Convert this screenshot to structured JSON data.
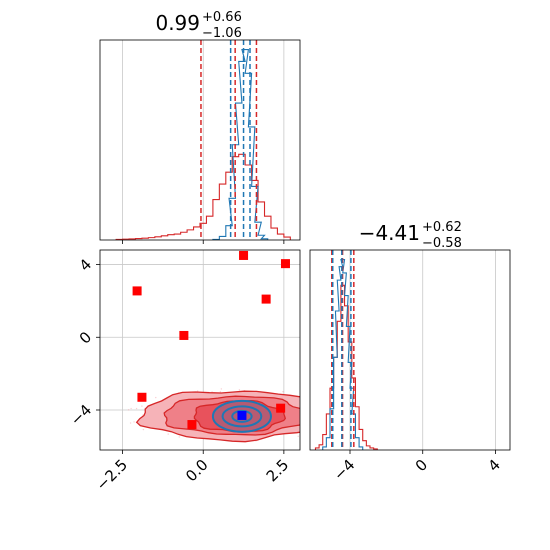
{
  "colors": {
    "red": "#d62728",
    "red_fill": "#f08080",
    "red_point": "#ff0000",
    "blue": "#1f77b4",
    "blue_point": "#0000ff",
    "grid": "#c8c8c8"
  },
  "chart_data": [
    {
      "type": "line",
      "panel": "top-left",
      "title": {
        "main": "0.99",
        "plus": "+0.66",
        "minus": "−1.06"
      },
      "xlim": [
        -3.2,
        3.0
      ],
      "x_ticks": [
        -2.5,
        0.0,
        2.5
      ],
      "grid": true,
      "series": [
        {
          "color": "#d62728",
          "x": [
            -2.6,
            -2.4,
            -2.2,
            -2.0,
            -1.8,
            -1.6,
            -1.4,
            -1.2,
            -1.0,
            -0.8,
            -0.6,
            -0.4,
            -0.2,
            0.0,
            0.2,
            0.4,
            0.6,
            0.8,
            1.0,
            1.2,
            1.4,
            1.6,
            1.8,
            2.0,
            2.2,
            2.4,
            2.6
          ],
          "y": [
            0.5,
            0.7,
            0.9,
            1.2,
            1.5,
            2.0,
            2.7,
            3.5,
            4.5,
            5.0,
            6.5,
            8.5,
            11.0,
            14.0,
            20.0,
            34.0,
            47.0,
            57.0,
            70.0,
            72.0,
            63.0,
            50.0,
            32.0,
            20.0,
            10.0,
            5.0,
            2.5
          ]
        },
        {
          "color": "#1f77b4",
          "x": [
            0.4,
            0.6,
            0.8,
            0.9,
            1.0,
            1.1,
            1.2,
            1.3,
            1.4,
            1.5,
            1.6,
            1.7,
            1.8,
            1.9
          ],
          "y": [
            0.5,
            3.0,
            12.0,
            35.0,
            80.0,
            115.0,
            150.0,
            160.0,
            140.0,
            95.0,
            45.0,
            15.0,
            4.0,
            1.0
          ]
        }
      ],
      "quantile_lines": [
        {
          "color": "#d62728",
          "x": [
            -0.07,
            0.99,
            1.65
          ]
        },
        {
          "color": "#1f77b4",
          "x": [
            0.85,
            1.25,
            1.45
          ]
        }
      ]
    },
    {
      "type": "scatter",
      "panel": "bottom-left",
      "xlim": [
        -3.2,
        3.0
      ],
      "ylim": [
        -6.2,
        4.8
      ],
      "x_ticks": [
        -2.5,
        0.0,
        2.5
      ],
      "y_ticks": [
        -4,
        0,
        4
      ],
      "grid": true,
      "red_points": [
        {
          "x": -2.05,
          "y": 2.55
        },
        {
          "x": 1.25,
          "y": 4.5
        },
        {
          "x": 2.55,
          "y": 4.05
        },
        {
          "x": 1.95,
          "y": 2.1
        },
        {
          "x": -0.6,
          "y": 0.1
        },
        {
          "x": -1.9,
          "y": -3.3
        },
        {
          "x": -0.35,
          "y": -4.8
        },
        {
          "x": 2.4,
          "y": -3.9
        }
      ],
      "blue_points": [
        {
          "x": 1.2,
          "y": -4.3
        }
      ],
      "red_contours": [
        {
          "cx": 0.9,
          "cy": -4.3,
          "rx": 2.85,
          "ry": 1.35
        },
        {
          "cx": 1.0,
          "cy": -4.3,
          "rx": 2.25,
          "ry": 1.05
        },
        {
          "cx": 1.1,
          "cy": -4.35,
          "rx": 1.4,
          "ry": 0.85
        }
      ],
      "blue_contours": [
        {
          "cx": 1.2,
          "cy": -4.35,
          "rx": 0.9,
          "ry": 0.85
        },
        {
          "cx": 1.2,
          "cy": -4.35,
          "rx": 0.6,
          "ry": 0.55
        },
        {
          "cx": 1.2,
          "cy": -4.35,
          "rx": 0.3,
          "ry": 0.3
        }
      ]
    },
    {
      "type": "line",
      "panel": "bottom-right",
      "title": {
        "main": "−4.41",
        "plus": "+0.62",
        "minus": "−0.58"
      },
      "xlim": [
        -6.2,
        4.8
      ],
      "x_ticks": [
        -4,
        0,
        4
      ],
      "grid": true,
      "series": [
        {
          "color": "#d62728",
          "x": [
            -5.8,
            -5.6,
            -5.4,
            -5.2,
            -5.0,
            -4.8,
            -4.6,
            -4.4,
            -4.2,
            -4.0,
            -3.8,
            -3.6,
            -3.4,
            -3.2,
            -3.0,
            -2.8,
            -2.6
          ],
          "y": [
            2.0,
            5.0,
            15.0,
            35.0,
            60.0,
            90.0,
            125.0,
            160.0,
            140.0,
            105.0,
            70.0,
            42.0,
            20.0,
            9.0,
            4.0,
            2.0,
            1.0
          ]
        },
        {
          "color": "#1f77b4",
          "x": [
            -5.4,
            -5.2,
            -5.0,
            -4.8,
            -4.7,
            -4.6,
            -4.5,
            -4.4,
            -4.3,
            -4.2,
            -4.1,
            -4.0,
            -3.9,
            -3.8,
            -3.6,
            -3.4
          ],
          "y": [
            3.0,
            12.0,
            40.0,
            90.0,
            135.0,
            165.0,
            178.0,
            185.0,
            172.0,
            150.0,
            120.0,
            85.0,
            60.0,
            35.0,
            12.0,
            3.0
          ]
        }
      ],
      "quantile_lines": [
        {
          "color": "#d62728",
          "x": [
            -5.0,
            -4.41,
            -3.79
          ]
        },
        {
          "color": "#1f77b4",
          "x": [
            -4.95,
            -4.45,
            -3.95
          ]
        }
      ]
    }
  ]
}
